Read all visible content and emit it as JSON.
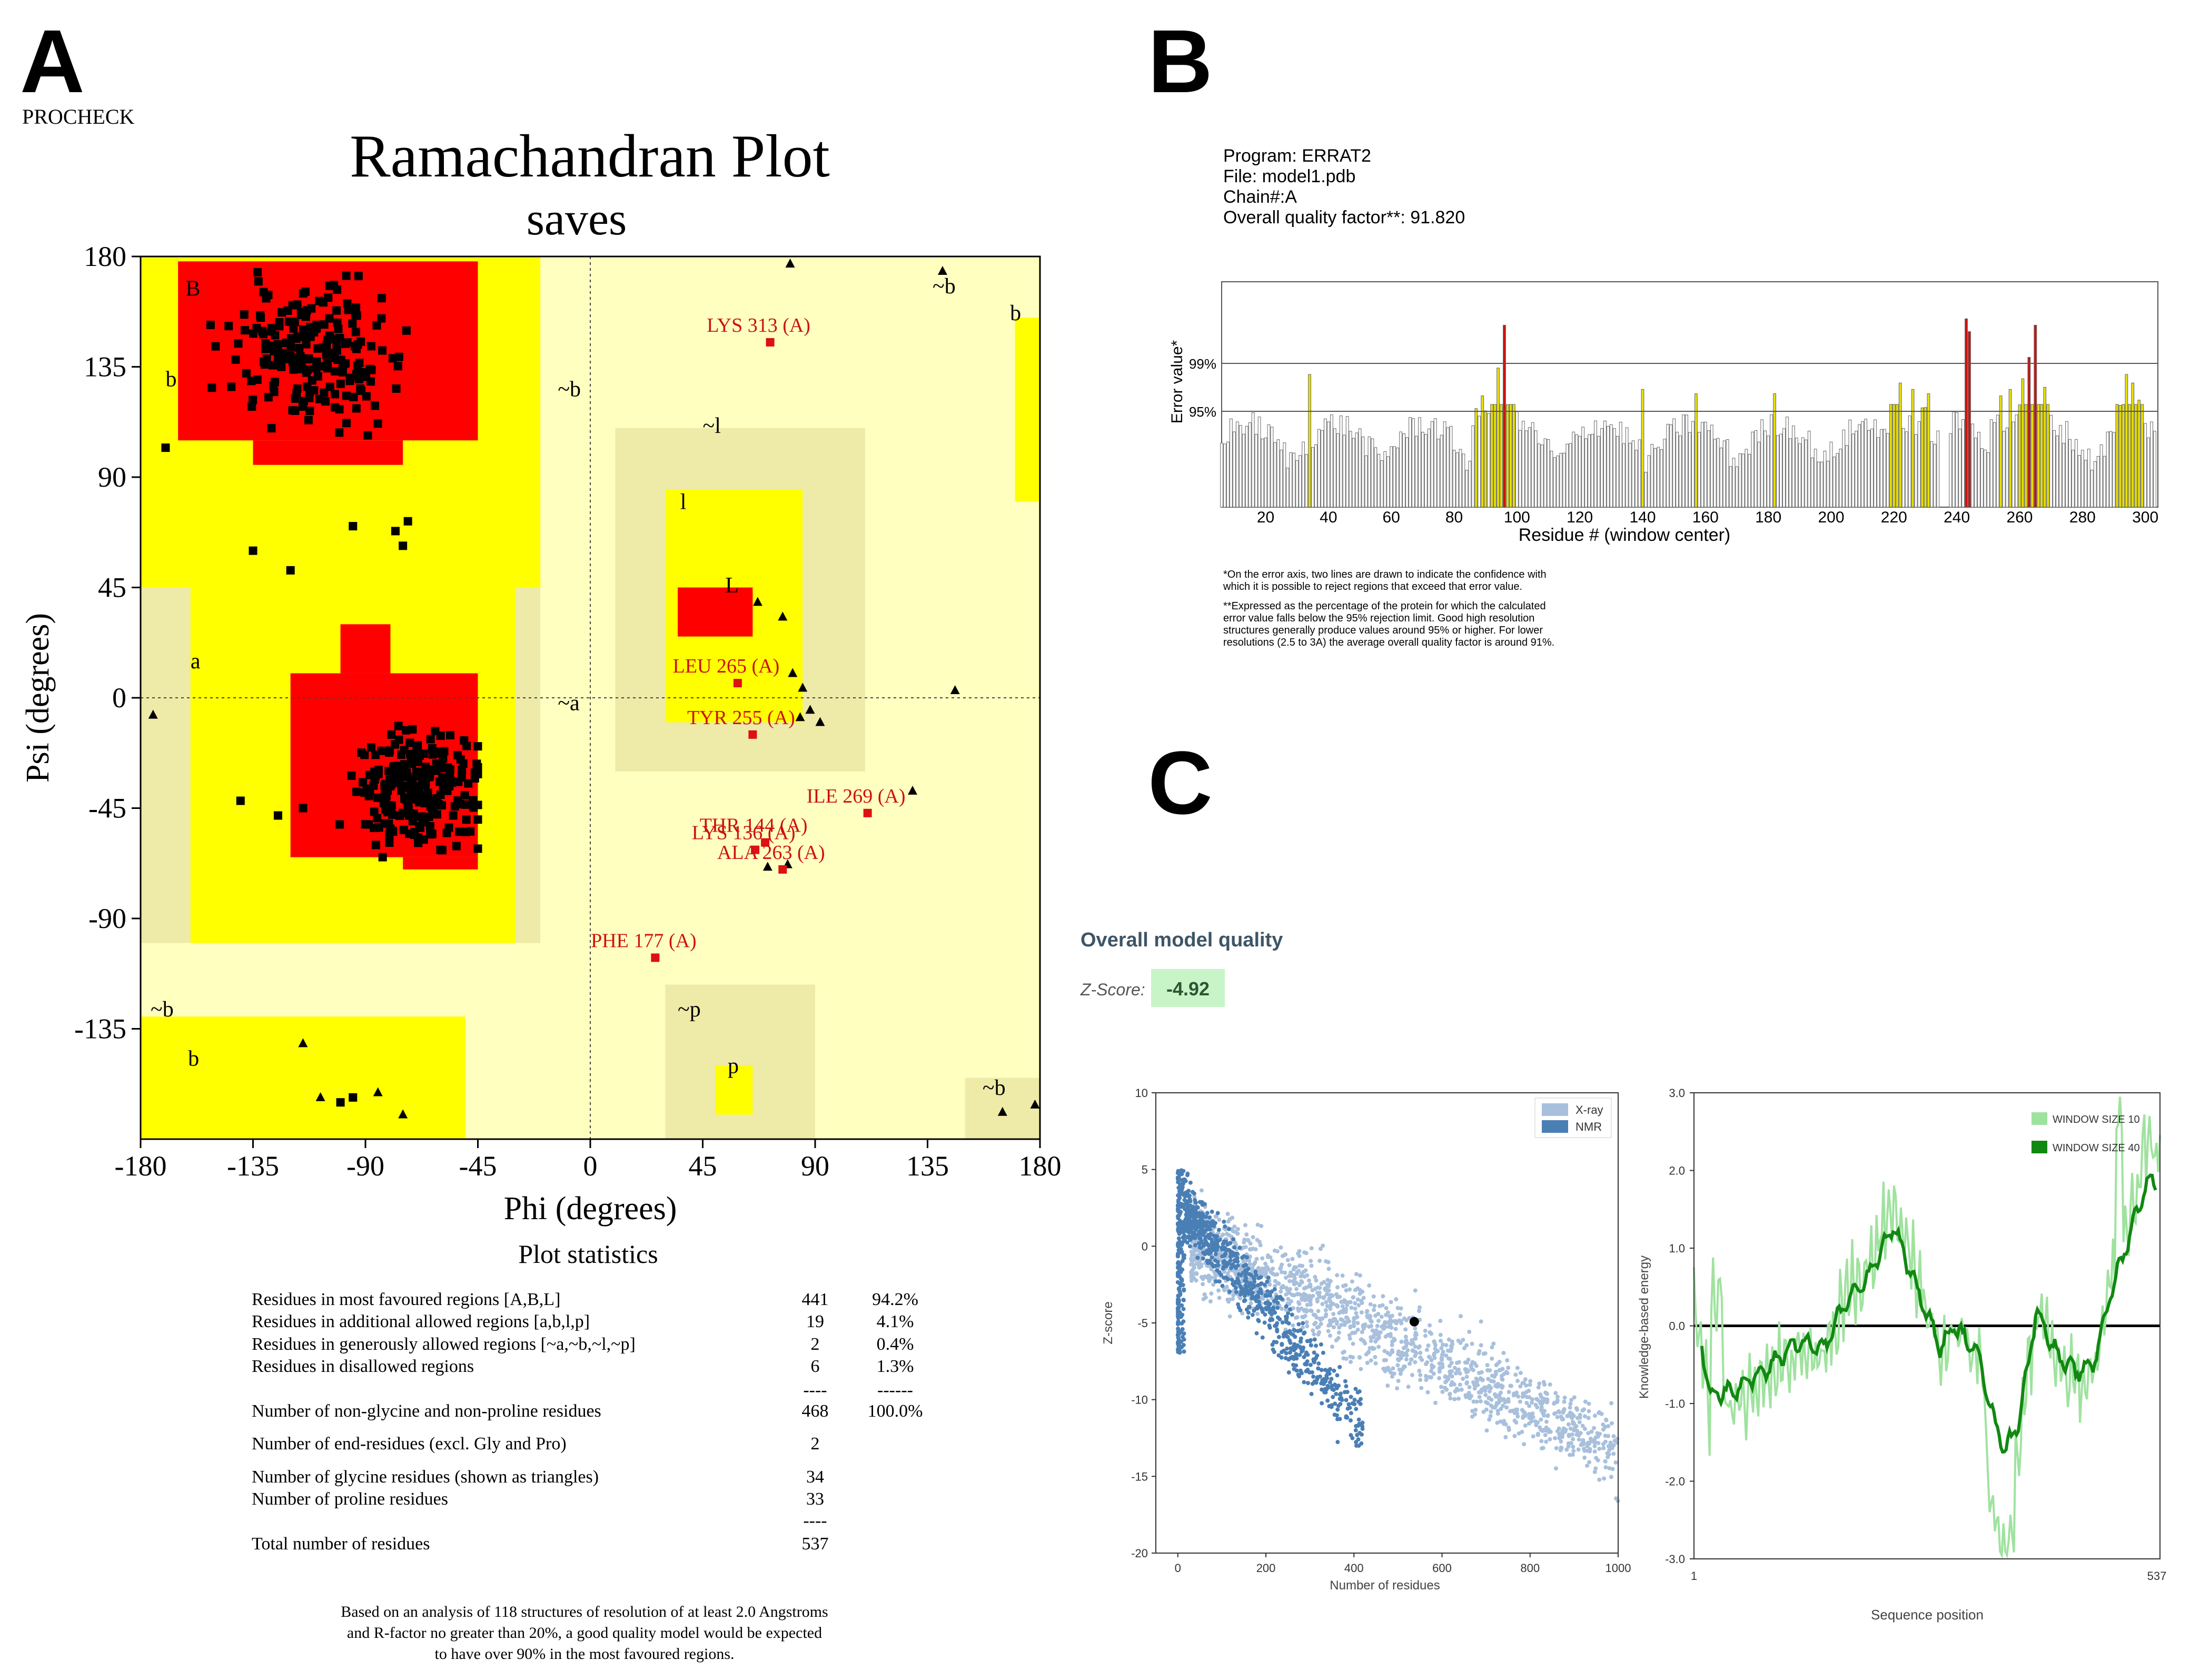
{
  "panels": {
    "a": "A",
    "b": "B",
    "c": "C"
  },
  "ramachandran": {
    "tool": "PROCHECK",
    "title": "Ramachandran Plot",
    "subtitle": "saves",
    "xlabel": "Phi (degrees)",
    "ylabel": "Psi (degrees)",
    "xticks": [
      "-180",
      "-135",
      "-90",
      "-45",
      "0",
      "45",
      "90",
      "135",
      "180"
    ],
    "yticks": [
      "180",
      "135",
      "90",
      "45",
      "0",
      "-45",
      "-90",
      "-135"
    ],
    "region_labels": [
      {
        "text": "B",
        "phi": -162,
        "psi": 164
      },
      {
        "text": "b",
        "phi": -170,
        "psi": 127
      },
      {
        "text": "~b",
        "phi": -13,
        "psi": 123
      },
      {
        "text": "b",
        "phi": 168,
        "psi": 154
      },
      {
        "text": "~b",
        "phi": 137,
        "psi": 165
      },
      {
        "text": "~l",
        "phi": 45,
        "psi": 108
      },
      {
        "text": "l",
        "phi": 36,
        "psi": 77
      },
      {
        "text": "L",
        "phi": 54,
        "psi": 43
      },
      {
        "text": "a",
        "phi": -160,
        "psi": 12
      },
      {
        "text": "~a",
        "phi": -13,
        "psi": -5
      },
      {
        "text": "~b",
        "phi": -176,
        "psi": -130
      },
      {
        "text": "b",
        "phi": -161,
        "psi": -150
      },
      {
        "text": "~p",
        "phi": 35,
        "psi": -130
      },
      {
        "text": "p",
        "phi": 55,
        "psi": -153
      },
      {
        "text": "~b",
        "phi": 157,
        "psi": -162
      }
    ],
    "outlier_labels": [
      {
        "text": "LYS 313 (A)",
        "phi": 72,
        "psi": 145
      },
      {
        "text": "LEU 265 (A)",
        "phi": 59,
        "psi": 6
      },
      {
        "text": "TYR 255 (A)",
        "phi": 65,
        "psi": -15
      },
      {
        "text": "ILE 269 (A)",
        "phi": 111,
        "psi": -47
      },
      {
        "text": "THR 144 (A)",
        "phi": 70,
        "psi": -59
      },
      {
        "text": "LYS 136 (A)",
        "phi": 66,
        "psi": -62
      },
      {
        "text": "ALA 263 (A)",
        "phi": 77,
        "psi": -70
      },
      {
        "text": "PHE 177 (A)",
        "phi": 26,
        "psi": -106
      }
    ],
    "stats_title": "Plot statistics",
    "stats": [
      {
        "label": "Residues in most favoured regions  [A,B,L]",
        "count": "441",
        "pct": "94.2%"
      },
      {
        "label": "Residues in additional allowed regions  [a,b,l,p]",
        "count": "19",
        "pct": "4.1%"
      },
      {
        "label": "Residues in generously allowed regions  [~a,~b,~l,~p]",
        "count": "2",
        "pct": "0.4%"
      },
      {
        "label": "Residues in disallowed regions",
        "count": "6",
        "pct": "1.3%"
      },
      {
        "label": "",
        "count": "----",
        "pct": "------"
      },
      {
        "label": "Number of non-glycine and non-proline residues",
        "count": "468",
        "pct": "100.0%"
      },
      {
        "label": "Number of end-residues (excl. Gly and Pro)",
        "count": "2",
        "pct": ""
      },
      {
        "label": "Number of glycine residues (shown as triangles)",
        "count": "34",
        "pct": ""
      },
      {
        "label": "Number of proline residues",
        "count": "33",
        "pct": ""
      },
      {
        "label": "",
        "count": "----",
        "pct": ""
      },
      {
        "label": "Total number of residues",
        "count": "537",
        "pct": ""
      }
    ],
    "footnote": [
      "Based on an analysis of 118 structures of resolution of at least 2.0 Angstroms",
      "and R-factor no greater than 20%, a good quality model would be expected",
      "to have over 90% in the most favoured regions."
    ],
    "colors": {
      "core": "#ff0000",
      "allowed": "#ffff00",
      "generous": "#eeeaa8",
      "light": "#ffffc0",
      "outlier": "#dd1111"
    }
  },
  "errat": {
    "header": [
      "Program: ERRAT2",
      "File: model1.pdb",
      "Chain#:A",
      "Overall quality factor**: 91.820"
    ],
    "ylabel": "Error value*",
    "xlabel": "Residue # (window center)",
    "xticks": [
      "20",
      "40",
      "60",
      "80",
      "100",
      "120",
      "140",
      "160",
      "180",
      "200",
      "220",
      "240",
      "260",
      "280",
      "300"
    ],
    "thresholds": [
      "99%",
      "95%"
    ],
    "notes": [
      "*On the error axis, two lines are drawn to indicate the confidence with",
      "which it is possible to reject regions that exceed that error value.",
      "**Expressed as the percentage of the protein for which the calculated",
      "error value falls below the 95% rejection limit.  Good high resolution",
      "structures generally produce values around 95% or higher.  For lower",
      "resolutions (2.5 to 3A) the average overall quality factor is around 91%."
    ],
    "chart_data": {
      "type": "bar",
      "x_range": [
        6,
        304
      ],
      "y_range": [
        0,
        1.0
      ],
      "threshold_levels": {
        "99%": 0.72,
        "95%": 0.5
      },
      "color_rule": "white below 95%, yellow above 95%, red above 99%"
    }
  },
  "prosa": {
    "title": "Overall model quality",
    "zscore_label": "Z-Score:",
    "zscore_value": "-4.92",
    "scatter": {
      "xlabel": "Number of residues",
      "ylabel": "Z-score",
      "xticks": [
        "0",
        "200",
        "400",
        "600",
        "800",
        "1000"
      ],
      "yticks": [
        "10",
        "5",
        "0",
        "-5",
        "-10",
        "-15",
        "-20"
      ],
      "legend": [
        "X-ray",
        "NMR"
      ],
      "colors": {
        "xray": "#a8c0dc",
        "nmr": "#4a7fb5"
      },
      "chart_data": {
        "type": "scatter",
        "xlim": [
          -50,
          1000
        ],
        "ylim": [
          -20,
          10
        ],
        "model_point": {
          "x": 537,
          "y": -4.92
        }
      }
    },
    "energy": {
      "xlabel": "Sequence position",
      "ylabel": "Knowledge-based energy",
      "xticks": [
        "1",
        "537"
      ],
      "yticks": [
        "3.0",
        "2.0",
        "1.0",
        "0.0",
        "-1.0",
        "-2.0",
        "-3.0"
      ],
      "legend": [
        "WINDOW SIZE 10",
        "WINDOW SIZE 40"
      ],
      "colors": {
        "w10": "#9fe29f",
        "w40": "#118811"
      },
      "chart_data": {
        "type": "line",
        "xlim": [
          1,
          537
        ],
        "ylim": [
          -3.0,
          3.0
        ]
      }
    }
  }
}
